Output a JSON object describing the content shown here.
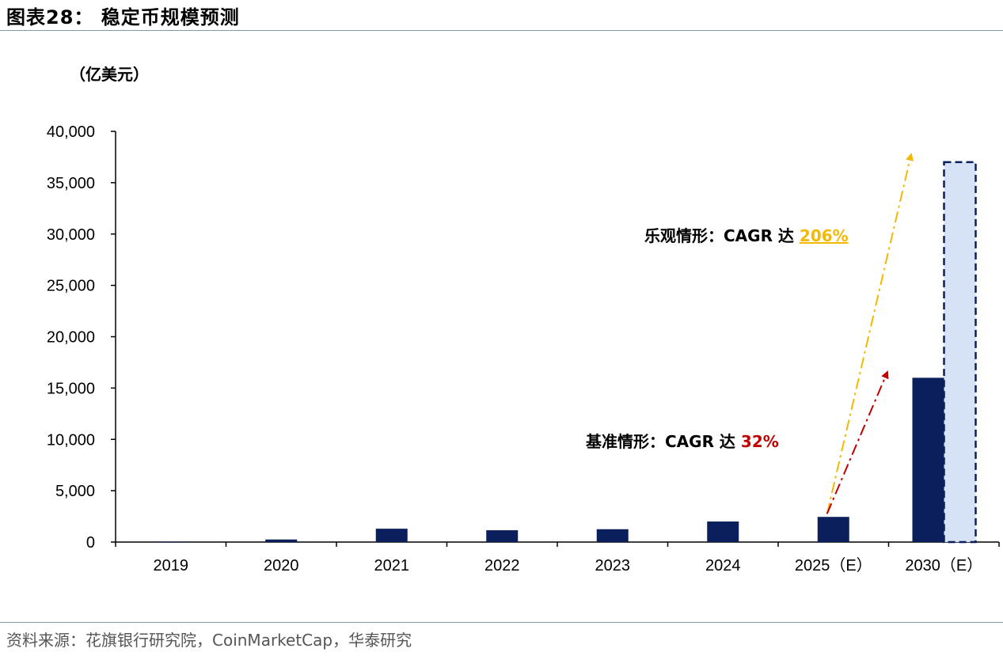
{
  "header": {
    "title": "图表28：  稳定币规模预测"
  },
  "unit_label": "（亿美元）",
  "source": "资料来源：花旗银行研究院，CoinMarketCap，华泰研究",
  "colors": {
    "bar": "#0b1f5c",
    "optimistic_fill": "#d6e2f5",
    "optimistic_border": "#0b1f5c",
    "optimistic_arrow": "#f5b800",
    "base_arrow": "#c00000",
    "rule": "#7f9bb3"
  },
  "chart_data": {
    "type": "bar",
    "categories": [
      "2019",
      "2020",
      "2021",
      "2022",
      "2023",
      "2024",
      "2025（E）",
      "2030（E）"
    ],
    "series": [
      {
        "values": [
          50,
          250,
          1300,
          1150,
          1250,
          2000,
          2450,
          16000
        ]
      },
      {
        "values": [
          null,
          null,
          null,
          null,
          null,
          null,
          null,
          37000
        ]
      }
    ],
    "ylim": [
      0,
      40000
    ],
    "yticks": [
      "0",
      "5,000",
      "10,000",
      "15,000",
      "20,000",
      "25,000",
      "30,000",
      "35,000",
      "40,000"
    ],
    "annotations": {
      "optimistic": {
        "prefix": "乐观情形：CAGR 达 ",
        "value": "206%"
      },
      "base": {
        "prefix": "基准情形：CAGR 达 ",
        "value": "32%"
      }
    }
  }
}
